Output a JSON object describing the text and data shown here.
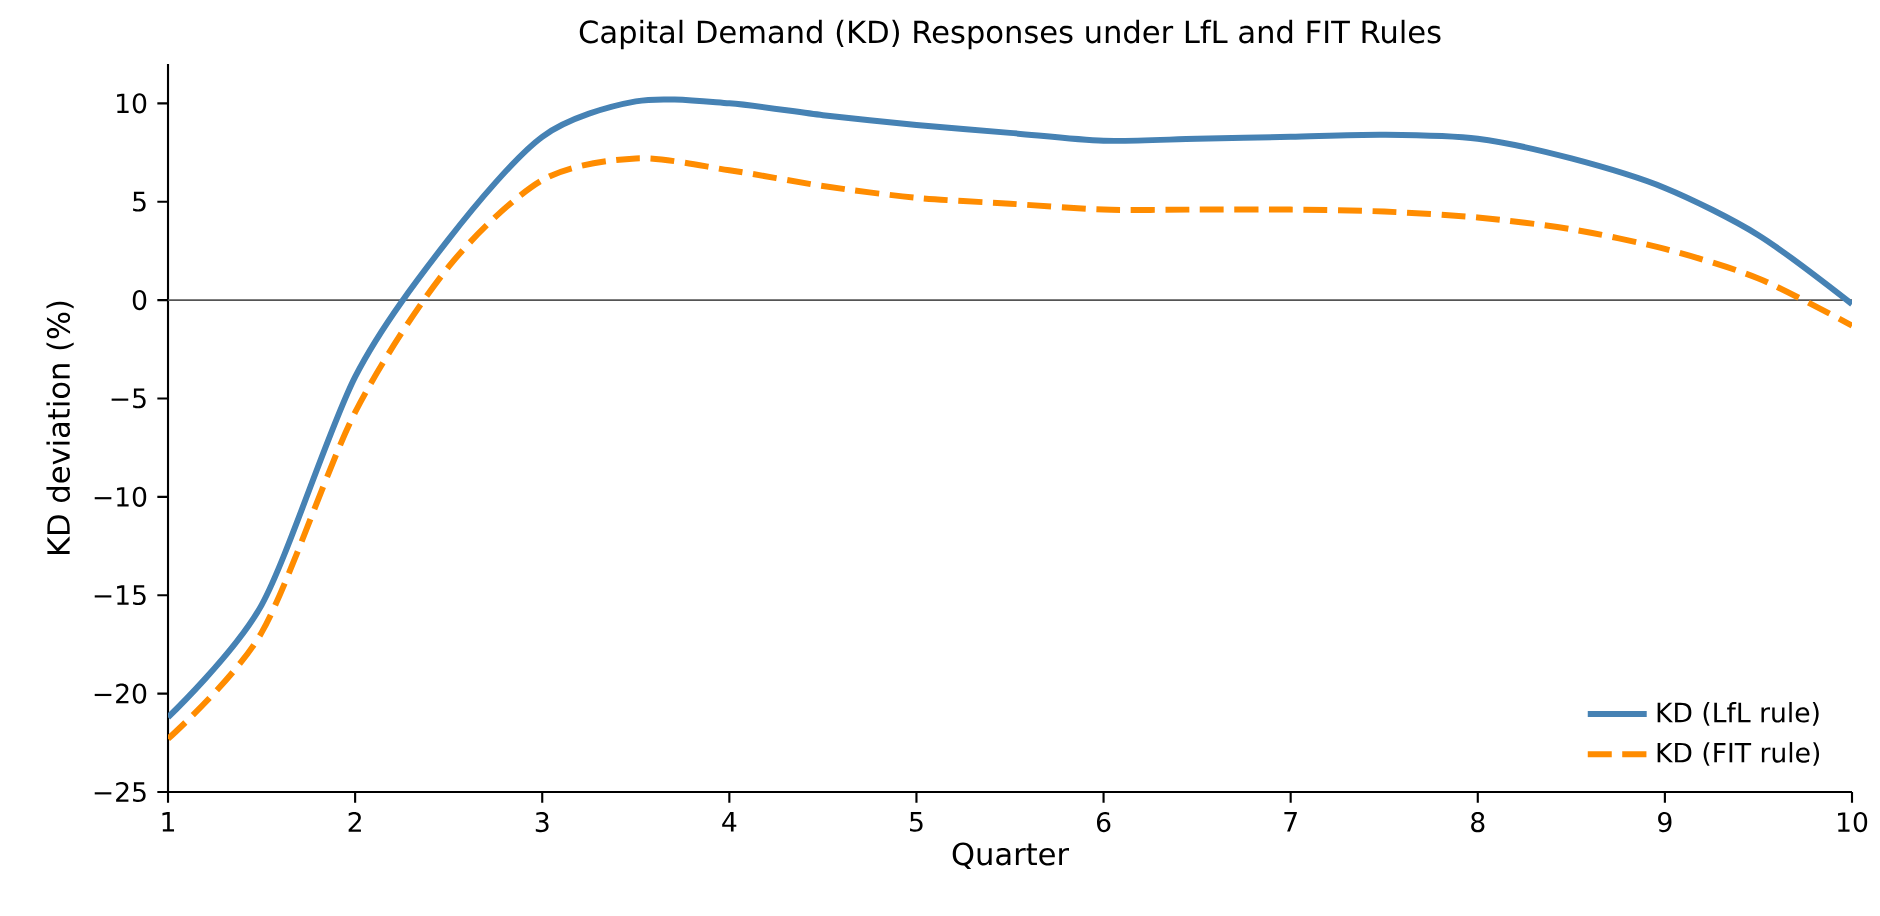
{
  "chart_data": {
    "type": "line",
    "title": "Capital Demand (KD) Responses under LfL and FIT Rules",
    "xlabel": "Quarter",
    "ylabel": "KD deviation (%)",
    "x": [
      1,
      1.5,
      2,
      2.5,
      3,
      3.5,
      4,
      4.5,
      5,
      5.5,
      6,
      6.5,
      7,
      7.5,
      8,
      8.5,
      9,
      9.5,
      10
    ],
    "series": [
      {
        "name": "KD (LfL rule)",
        "color": "#4682b4",
        "line_style": "solid",
        "values": [
          -21.2,
          -15.5,
          -3.9,
          3.1,
          8.3,
          10.1,
          10.0,
          9.4,
          8.9,
          8.5,
          8.1,
          8.2,
          8.3,
          8.4,
          8.2,
          7.2,
          5.7,
          3.3,
          -0.2
        ]
      },
      {
        "name": "KD (FIT rule)",
        "color": "#ff8c00",
        "line_style": "dashed",
        "values": [
          -22.3,
          -16.9,
          -5.7,
          1.7,
          6.1,
          7.2,
          6.6,
          5.8,
          5.2,
          4.9,
          4.6,
          4.6,
          4.6,
          4.5,
          4.2,
          3.6,
          2.6,
          1.1,
          -1.3
        ]
      }
    ],
    "xlim": [
      1,
      10
    ],
    "ylim": [
      -25,
      12
    ],
    "xticks": [
      1,
      2,
      3,
      4,
      5,
      6,
      7,
      8,
      9,
      10
    ],
    "yticks": [
      {
        "value": -25,
        "label": "−25"
      },
      {
        "value": -20,
        "label": "−20"
      },
      {
        "value": -15,
        "label": "−15"
      },
      {
        "value": -10,
        "label": "−10"
      },
      {
        "value": -5,
        "label": "−5"
      },
      0,
      5,
      10
    ],
    "ref_lines": [
      {
        "axis": "y",
        "value": 0,
        "color": "#555555"
      }
    ],
    "grid": false,
    "legend": "bottom right",
    "marker": "none"
  }
}
